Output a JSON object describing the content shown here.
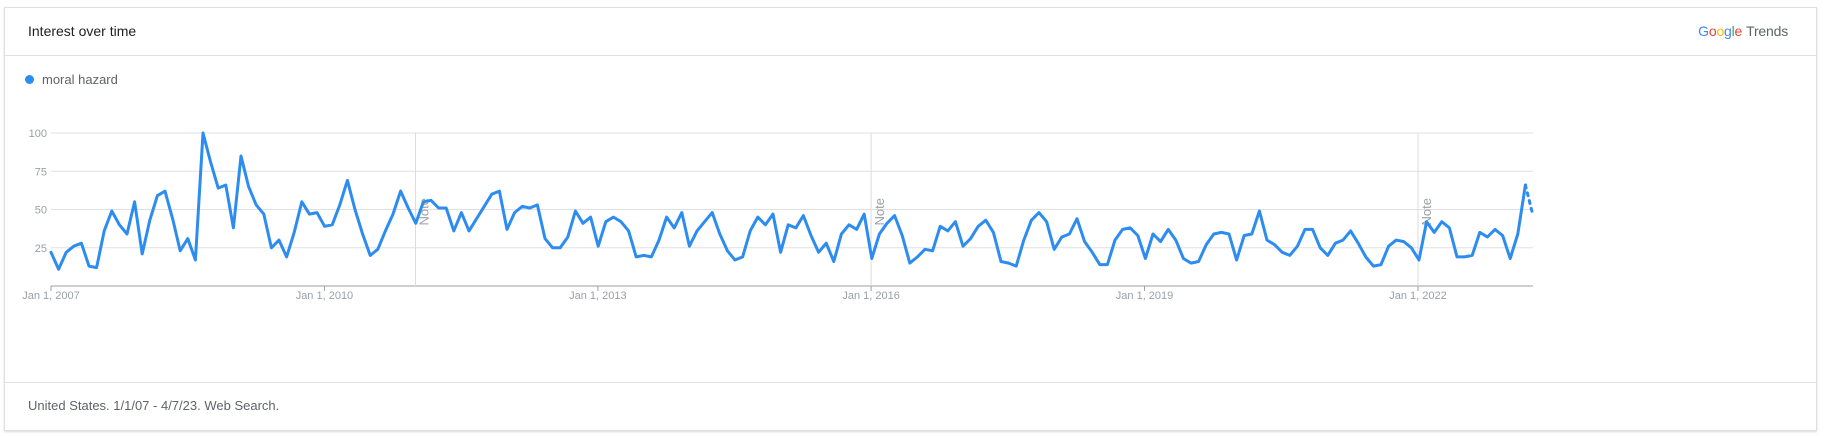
{
  "header": {
    "title": "Interest over time"
  },
  "brand": {
    "google_letters": [
      "G",
      "o",
      "o",
      "g",
      "l",
      "e"
    ],
    "product": "Trends"
  },
  "footer": {
    "text": "United States. 1/1/07 - 4/7/23. Web Search."
  },
  "colors": {
    "series": "#2d8cf0",
    "grid": "#e0e0e0",
    "axis": "#9aa0a6"
  },
  "chart_data": {
    "type": "line",
    "series": [
      {
        "name": "moral hazard",
        "values": [
          22,
          11,
          22,
          26,
          28,
          13,
          12,
          36,
          49,
          40,
          34,
          55,
          21,
          43,
          59,
          62,
          44,
          23,
          31,
          17,
          100,
          81,
          64,
          66,
          38,
          85,
          65,
          53,
          47,
          25,
          30,
          19,
          35,
          55,
          47,
          48,
          39,
          40,
          53,
          69,
          50,
          34,
          20,
          24,
          36,
          47,
          62,
          51,
          41,
          55,
          56,
          51,
          51,
          36,
          48,
          36,
          44,
          52,
          60,
          62,
          37,
          48,
          52,
          51,
          53,
          31,
          25,
          25,
          32,
          49,
          41,
          45,
          26,
          42,
          45,
          42,
          36,
          19,
          20,
          19,
          30,
          45,
          38,
          48,
          26,
          36,
          42,
          48,
          34,
          23,
          17,
          19,
          36,
          45,
          40,
          47,
          22,
          40,
          38,
          46,
          33,
          22,
          28,
          16,
          34,
          40,
          37,
          47,
          18,
          34,
          41,
          46,
          33,
          15,
          19,
          24,
          23,
          39,
          36,
          42,
          26,
          31,
          39,
          43,
          35,
          16,
          15,
          13,
          30,
          43,
          48,
          42,
          24,
          32,
          34,
          44,
          29,
          22,
          14,
          14,
          30,
          37,
          38,
          33,
          18,
          34,
          29,
          37,
          30,
          18,
          15,
          16,
          27,
          34,
          35,
          34,
          17,
          33,
          34,
          49,
          30,
          27,
          22,
          20,
          26,
          37,
          37,
          25,
          20,
          28,
          30,
          36,
          28,
          19,
          13,
          14,
          26,
          30,
          29,
          25,
          17,
          42,
          35,
          42,
          38,
          19,
          19,
          20,
          35,
          32,
          37,
          33,
          18,
          34,
          66,
          46
        ],
        "dotted_last_segment": true
      }
    ],
    "x_start": "Jan 1, 2007",
    "x_end": "Apr 7, 2023",
    "x_ticks": [
      "Jan 1, 2007",
      "Jan 1, 2010",
      "Jan 1, 2013",
      "Jan 1, 2016",
      "Jan 1, 2019",
      "Jan 1, 2022"
    ],
    "y_ticks": [
      25,
      50,
      75,
      100
    ],
    "ylim": [
      0,
      100
    ],
    "grid": true,
    "notes": [
      {
        "label": "Note",
        "date": "Jan 1, 2011"
      },
      {
        "label": "Note",
        "date": "Jan 1, 2016"
      },
      {
        "label": "Note",
        "date": "Jan 1, 2022"
      }
    ],
    "legend": "top-left",
    "title": "",
    "xlabel": "",
    "ylabel": ""
  }
}
